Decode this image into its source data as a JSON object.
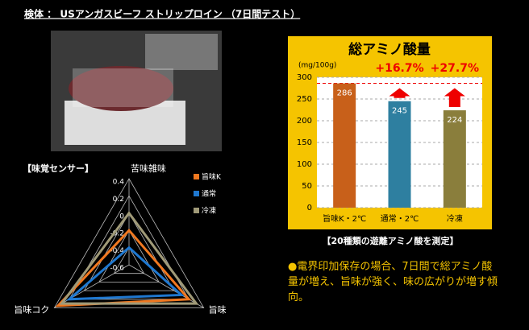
{
  "header": {
    "title": "検体 ： USアンガスビーフ ストリップロイン （7日間テスト）"
  },
  "chart_data": [
    {
      "type": "radar",
      "title": "【味覚センサー】",
      "categories": [
        "苦味雑味",
        "旨味",
        "旨味コク"
      ],
      "rlim": [
        -0.6,
        0.4
      ],
      "rticks": [
        0.4,
        0.2,
        0,
        -0.2,
        -0.4,
        -0.6
      ],
      "series": [
        {
          "name": "旨味K",
          "color": "#f07820",
          "values": [
            -0.2,
            0.2,
            0.35
          ]
        },
        {
          "name": "通常",
          "color": "#1f78d0",
          "values": [
            -0.4,
            0.1,
            0.2
          ]
        },
        {
          "name": "冷凍",
          "color": "#a09a78",
          "values": [
            0,
            0.3,
            0.3
          ]
        }
      ]
    },
    {
      "type": "bar",
      "title": "総アミノ酸量",
      "ylabel": "(mg/100g)",
      "categories": [
        "旨味K・2℃",
        "通常・2℃",
        "冷凍"
      ],
      "values": [
        286,
        245,
        224
      ],
      "colors": [
        "#c8601a",
        "#2e7fa0",
        "#8a7e3c"
      ],
      "ylim": [
        0,
        300
      ],
      "yticks": [
        0,
        50,
        100,
        150,
        200,
        250,
        300
      ],
      "grid": true,
      "annotations": [
        "+16.7%",
        "+27.7%"
      ]
    }
  ],
  "caption": "【20種類の遊離アミノ酸を測定】",
  "note": "●電界印加保存の場合、7日間で総アミノ酸量が増え、旨味が強く、味の広がりが増す傾向。"
}
